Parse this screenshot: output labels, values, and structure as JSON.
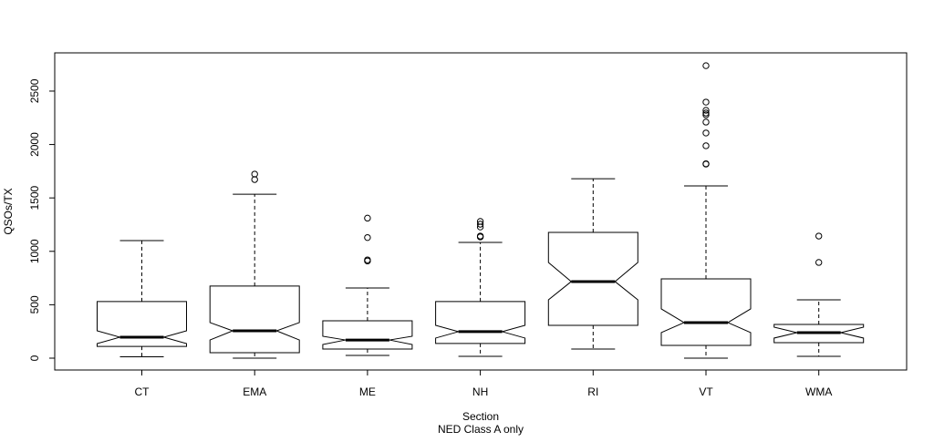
{
  "chart_data": {
    "type": "boxplot",
    "notched": true,
    "title": "",
    "xlabel": "Section",
    "subtitle": "NED Class A only",
    "ylabel": "QSOs/TX",
    "ylim": [
      -111,
      2858
    ],
    "yticks": [
      0,
      500,
      1000,
      1500,
      2000,
      2500
    ],
    "categories": [
      "CT",
      "EMA",
      "ME",
      "NH",
      "RI",
      "VT",
      "WMA"
    ],
    "boxes": [
      {
        "name": "CT",
        "low": 13,
        "q1": 110,
        "median": 196,
        "q3": 530,
        "high": 1100,
        "notch": [
          136,
          256
        ],
        "outliers": []
      },
      {
        "name": "EMA",
        "low": 0,
        "q1": 51,
        "median": 256,
        "q3": 675,
        "high": 1535,
        "notch": [
          170,
          333
        ],
        "outliers": [
          1672,
          1723
        ]
      },
      {
        "name": "ME",
        "low": 26,
        "q1": 85,
        "median": 170,
        "q3": 350,
        "high": 657,
        "notch": [
          128,
          205
        ],
        "outliers": [
          910,
          920,
          1129,
          1311
        ]
      },
      {
        "name": "NH",
        "low": 17,
        "q1": 137,
        "median": 248,
        "q3": 530,
        "high": 1083,
        "notch": [
          188,
          307
        ],
        "outliers": [
          1135,
          1143,
          1228,
          1254,
          1280
        ]
      },
      {
        "name": "RI",
        "low": 85,
        "q1": 307,
        "median": 717,
        "q3": 1177,
        "high": 1680,
        "notch": [
          546,
          896
        ],
        "outliers": []
      },
      {
        "name": "VT",
        "low": 0,
        "q1": 119,
        "median": 333,
        "q3": 742,
        "high": 1612,
        "notch": [
          239,
          461
        ],
        "outliers": [
          1817,
          1820,
          1988,
          2108,
          2210,
          2278,
          2295,
          2320,
          2397,
          2738
        ]
      },
      {
        "name": "WMA",
        "low": 17,
        "q1": 145,
        "median": 239,
        "q3": 316,
        "high": 546,
        "notch": [
          188,
          290
        ],
        "outliers": [
          896,
          1143
        ]
      }
    ]
  }
}
